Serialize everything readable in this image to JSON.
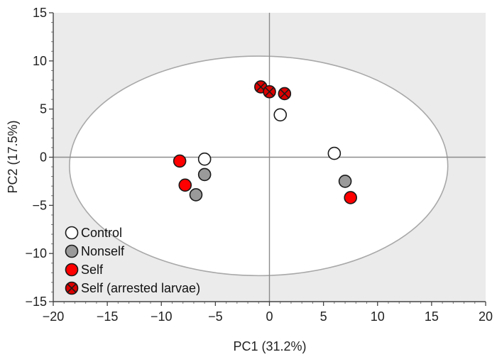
{
  "chart_data": {
    "type": "scatter",
    "title": "",
    "xlabel": "PC1 (31.2%)",
    "ylabel": "PC2 (17.5%)",
    "xlim": [
      -20,
      20
    ],
    "ylim": [
      -15,
      15
    ],
    "xticks": [
      -20,
      -15,
      -10,
      -5,
      0,
      5,
      10,
      15,
      20
    ],
    "yticks": [
      -15,
      -10,
      -5,
      0,
      5,
      10,
      15
    ],
    "xtick_labels": [
      "−20",
      "−15",
      "−10",
      "−5",
      "0",
      "5",
      "10",
      "15",
      "20"
    ],
    "ytick_labels": [
      "−15",
      "−10",
      "−5",
      "0",
      "5",
      "10",
      "15"
    ],
    "ellipse": {
      "cx": -1,
      "cy": -0.9,
      "rx": 17.5,
      "ry": 11.4
    },
    "legend_position": "bottom-left",
    "series": [
      {
        "name": "Control",
        "marker": "open",
        "fill": "#ffffff",
        "x": [
          -6.0,
          1.0,
          6.0
        ],
        "y": [
          -0.2,
          4.4,
          0.4
        ]
      },
      {
        "name": "Nonself",
        "marker": "gray",
        "fill": "#9a9a9a",
        "x": [
          -6.0,
          -6.8,
          7.0
        ],
        "y": [
          -1.8,
          -3.9,
          -2.5
        ]
      },
      {
        "name": "Self",
        "marker": "red",
        "fill": "#ff0000",
        "x": [
          -8.3,
          -7.8,
          7.5
        ],
        "y": [
          -0.4,
          -2.9,
          -4.2
        ]
      },
      {
        "name": "Self (arrested larvae)",
        "marker": "red-x",
        "fill": "#dd0000",
        "x": [
          -0.8,
          0.0,
          1.4
        ],
        "y": [
          7.3,
          6.8,
          6.6
        ]
      }
    ]
  }
}
